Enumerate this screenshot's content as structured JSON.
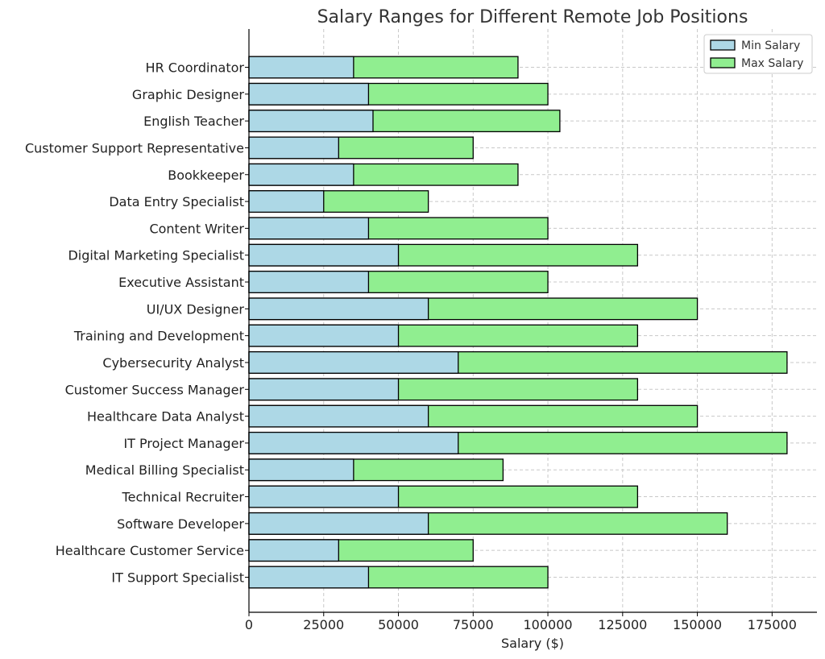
{
  "chart_data": {
    "type": "bar",
    "orientation": "horizontal",
    "title": "Salary Ranges for Different Remote Job Positions",
    "xlabel": "Salary ($)",
    "ylabel": "",
    "xlim": [
      0,
      190000
    ],
    "xticks": [
      0,
      25000,
      50000,
      75000,
      100000,
      125000,
      150000,
      175000
    ],
    "grid": true,
    "legend_position": "top-right",
    "categories": [
      "IT Support Specialist",
      "Healthcare Customer Service",
      "Software Developer",
      "Technical Recruiter",
      "Medical Billing Specialist",
      "IT Project Manager",
      "Healthcare Data Analyst",
      "Customer Success Manager",
      "Cybersecurity Analyst",
      "Training and Development",
      "UI/UX Designer",
      "Executive Assistant",
      "Digital Marketing Specialist",
      "Content Writer",
      "Data Entry Specialist",
      "Bookkeeper",
      "Customer Support Representative",
      "English Teacher",
      "Graphic Designer",
      "HR Coordinator"
    ],
    "series": [
      {
        "name": "Min Salary",
        "color": "#add8e6",
        "values": [
          40000,
          30000,
          60000,
          50000,
          35000,
          70000,
          60000,
          50000,
          70000,
          50000,
          60000,
          40000,
          50000,
          40000,
          25000,
          35000,
          30000,
          41500,
          40000,
          35000
        ]
      },
      {
        "name": "Max Salary",
        "color": "#90ee90",
        "values": [
          100000,
          75000,
          160000,
          130000,
          85000,
          180000,
          150000,
          130000,
          180000,
          130000,
          150000,
          100000,
          130000,
          100000,
          60000,
          90000,
          75000,
          104000,
          100000,
          90000
        ]
      }
    ]
  }
}
